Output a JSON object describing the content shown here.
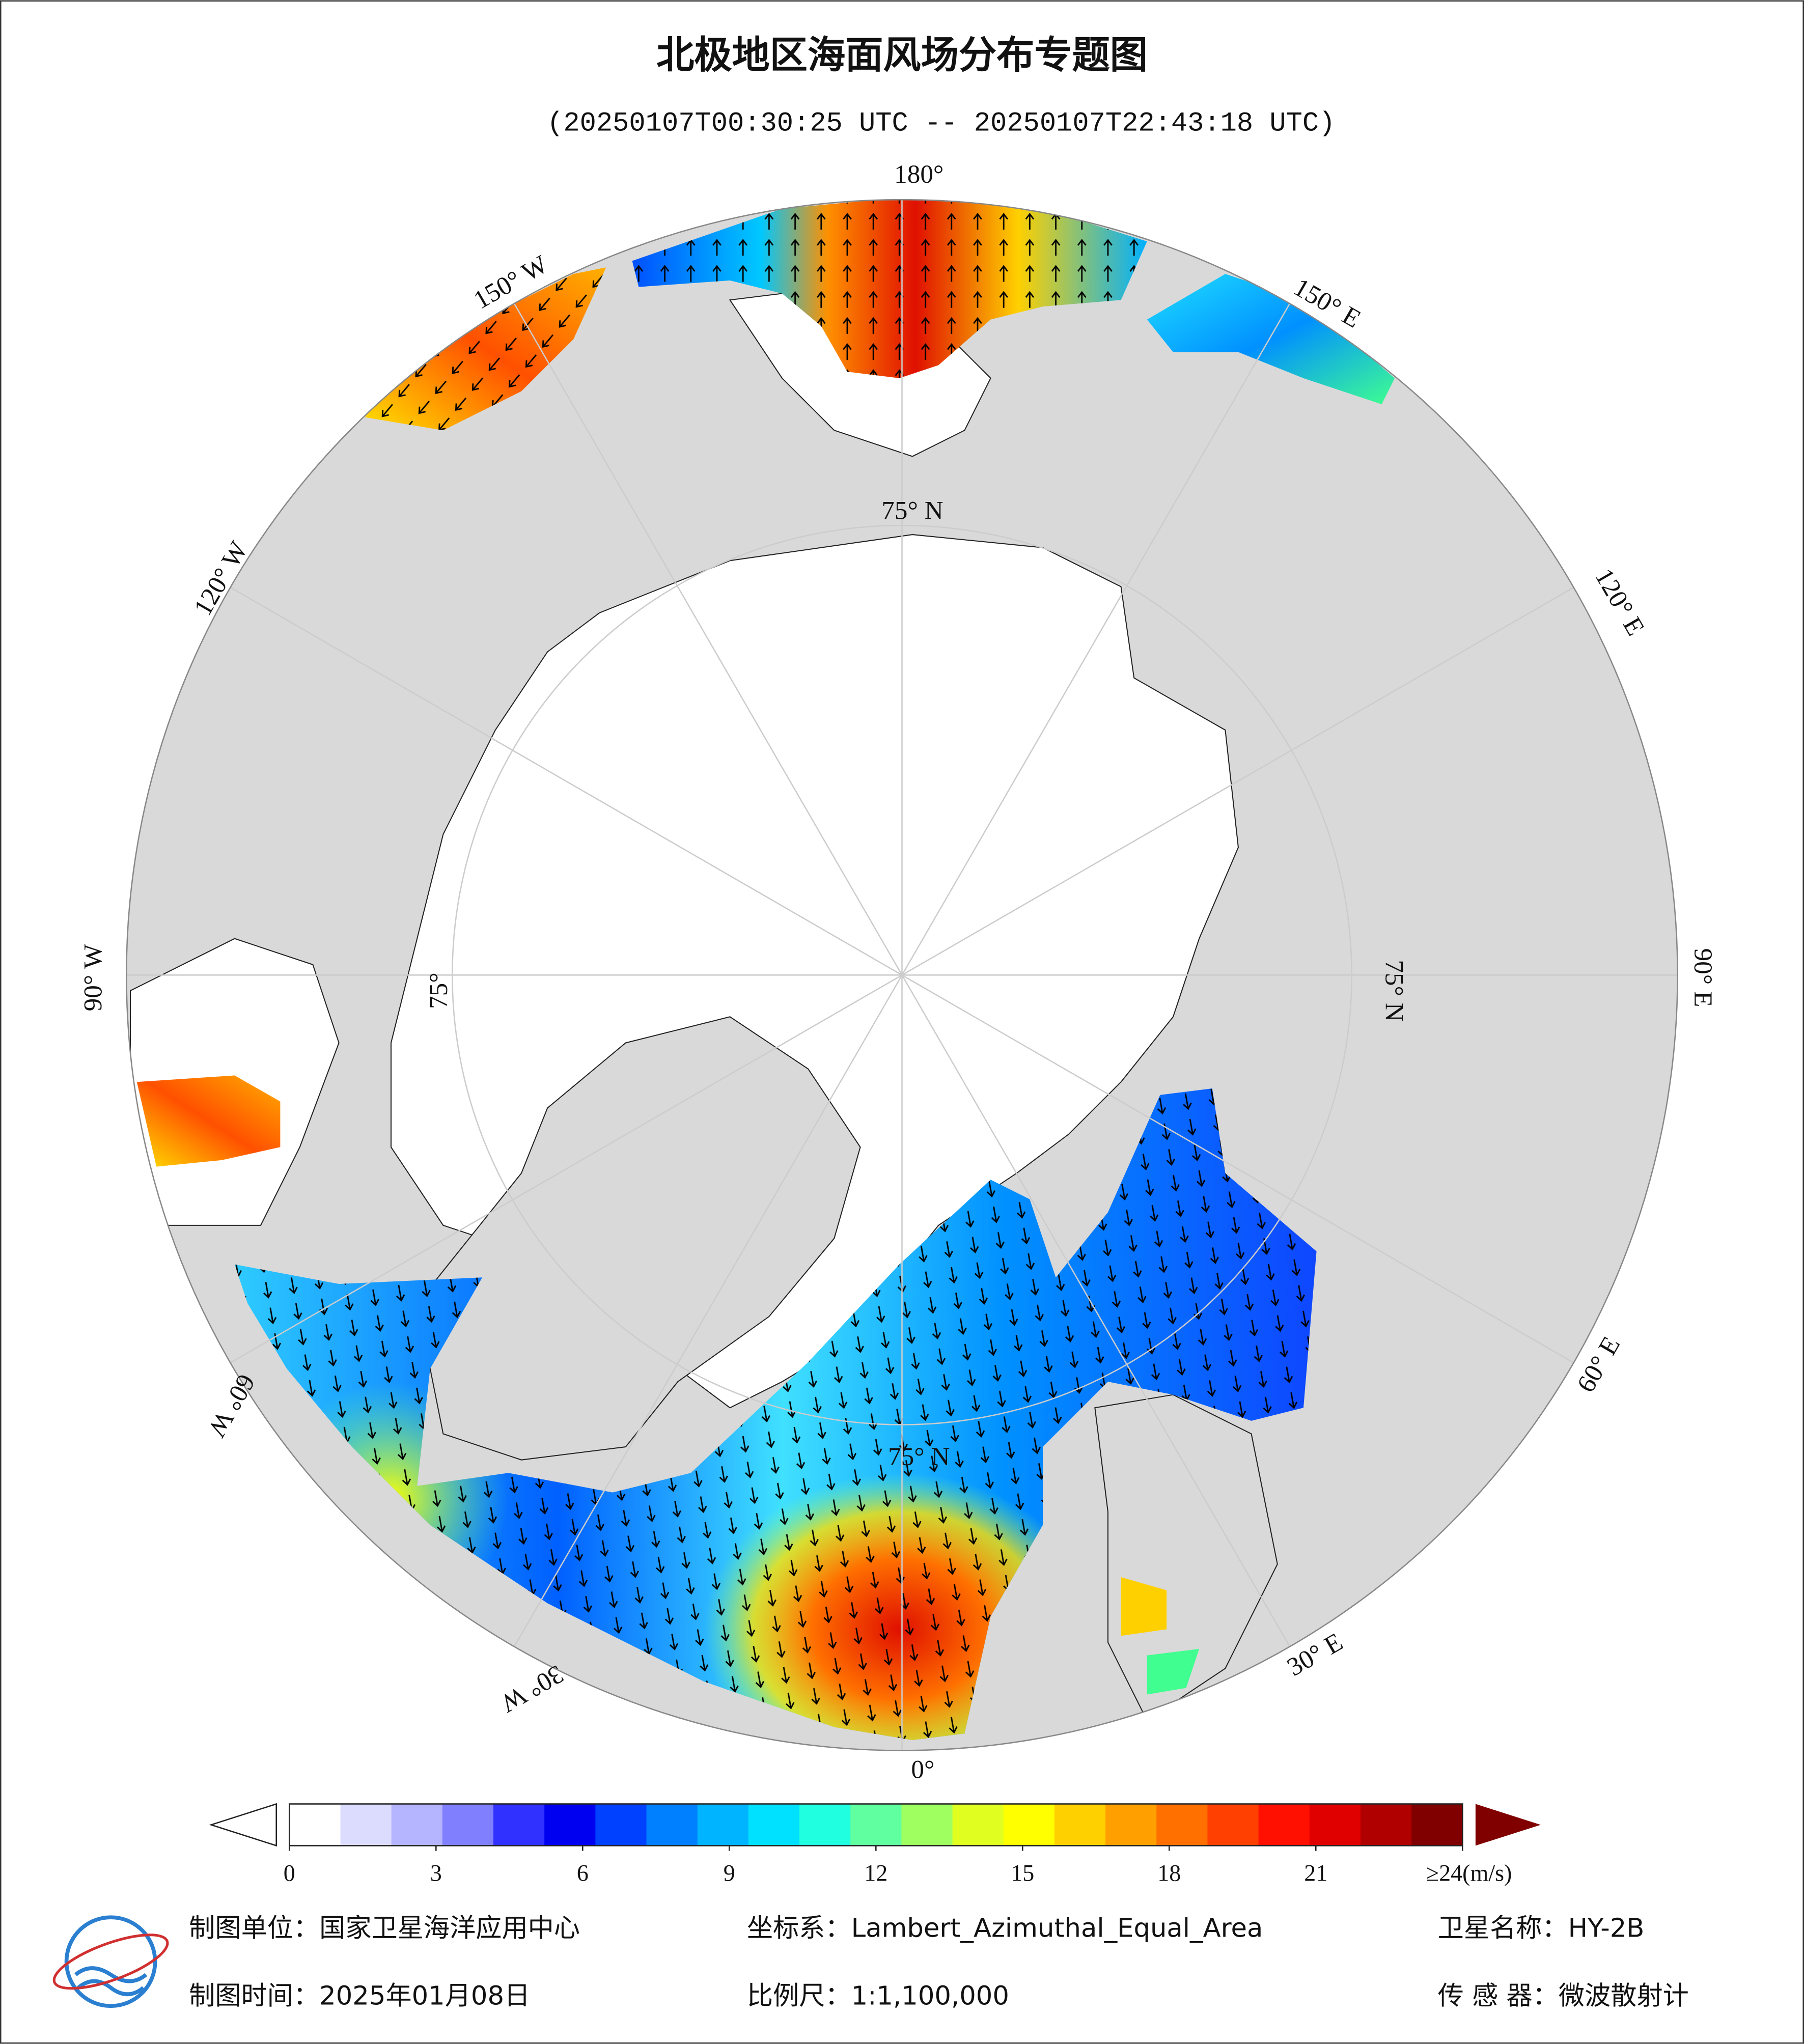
{
  "title": "北极地区海面风场分布专题图",
  "subtitle": "(20250107T00:30:25 UTC -- 20250107T22:43:18 UTC)",
  "map": {
    "longitude_labels": [
      "180°",
      "150° W",
      "120° W",
      "90° W",
      "60° W",
      "30° W",
      "0°",
      "30° E",
      "60° E",
      "90° E",
      "120° E",
      "150° E"
    ],
    "latitude_labels": [
      "75° N",
      "75° N",
      "75° N",
      "75°"
    ]
  },
  "colorbar": {
    "lim": [
      0,
      24
    ],
    "ticks": [
      0,
      3,
      6,
      9,
      12,
      15,
      18,
      21,
      {
        "value": 24,
        "label": "≥24(m/s)"
      }
    ],
    "colors": [
      "#ffffff",
      "#dcdcff",
      "#b4b4ff",
      "#8080ff",
      "#3030ff",
      "#0000f0",
      "#0040ff",
      "#0080ff",
      "#00b4ff",
      "#00e0ff",
      "#20ffe0",
      "#60ffa0",
      "#a0ff60",
      "#e0ff20",
      "#ffff00",
      "#ffd000",
      "#ffa000",
      "#ff7000",
      "#ff4000",
      "#ff1000",
      "#e00000",
      "#b00000",
      "#800000"
    ]
  },
  "footer": [
    "制图单位：国家卫星海洋应用中心",
    "坐标系：Lambert_Azimuthal_Equal_Area",
    "卫星名称：HY-2B",
    "制图时间：2025年01月08日",
    "比例尺：1:1,100,000",
    "传 感 器：微波散射计"
  ]
}
